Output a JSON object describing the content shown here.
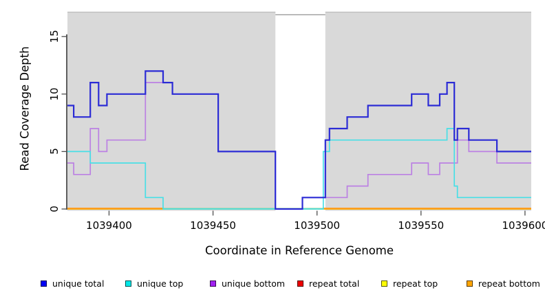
{
  "chart_data": {
    "type": "line",
    "subtype": "step",
    "title": "",
    "xlabel": "Coordinate in Reference Genome",
    "ylabel": "Read Coverage Depth",
    "xlim": [
      1039380,
      1039603
    ],
    "ylim": [
      0,
      17.2
    ],
    "x_ticks": [
      1039400,
      1039450,
      1039500,
      1039550,
      1039600
    ],
    "x_tick_labels": [
      "1039400",
      "1039450",
      "1039500",
      "1039550",
      "1039600"
    ],
    "y_ticks": [
      0,
      5,
      10,
      15
    ],
    "y_tick_labels": [
      "0",
      "5",
      "10",
      "15"
    ],
    "grid": false,
    "legend_position": "bottom",
    "plot_background": "#d9d9d9",
    "plot_background_top_edge": "#bcbcbc",
    "gap_region": {
      "x0": 1039480,
      "x1": 1039504,
      "color": "#ffffff",
      "top_line_y": 16.9,
      "top_line_color": "#9a9a9a"
    },
    "zero_line_segments": [
      {
        "x0": 1039380,
        "x1": 1039426,
        "color": "#ff9b1a",
        "width": 2.4
      },
      {
        "x0": 1039426,
        "x1": 1039503,
        "color": "#8fcf8f",
        "width": 1.7
      },
      {
        "x0": 1039503,
        "x1": 1039603,
        "color": "#ff9b1a",
        "width": 2.4
      }
    ],
    "series": [
      {
        "name": "unique total",
        "color": "#2b2bd5",
        "width": 2.2,
        "end": 1039603,
        "steps": [
          [
            1039380,
            9
          ],
          [
            1039383,
            8
          ],
          [
            1039391,
            11
          ],
          [
            1039395,
            9
          ],
          [
            1039399,
            10
          ],
          [
            1039417.5,
            12
          ],
          [
            1039426,
            11
          ],
          [
            1039430.5,
            10
          ],
          [
            1039452.5,
            5
          ],
          [
            1039480,
            0
          ],
          [
            1039493,
            1
          ],
          [
            1039504,
            6
          ],
          [
            1039506,
            7
          ],
          [
            1039514.5,
            8
          ],
          [
            1039524.5,
            9
          ],
          [
            1039545.5,
            10
          ],
          [
            1039553.5,
            9
          ],
          [
            1039559,
            10
          ],
          [
            1039562.5,
            11
          ],
          [
            1039566,
            6
          ],
          [
            1039567.5,
            7
          ],
          [
            1039573,
            6
          ],
          [
            1039586.5,
            5
          ]
        ]
      },
      {
        "name": "unique top",
        "color": "#48dfe6",
        "width": 1.7,
        "end": 1039603,
        "steps": [
          [
            1039380,
            5
          ],
          [
            1039391,
            4
          ],
          [
            1039417.5,
            1
          ],
          [
            1039426,
            0
          ],
          [
            1039503,
            5
          ],
          [
            1039506,
            6
          ],
          [
            1039562.5,
            7
          ],
          [
            1039566,
            2
          ],
          [
            1039567.5,
            1
          ]
        ]
      },
      {
        "name": "unique bottom",
        "color": "#bb80e3",
        "width": 1.7,
        "end": 1039603,
        "steps": [
          [
            1039380,
            4
          ],
          [
            1039383,
            3
          ],
          [
            1039391,
            7
          ],
          [
            1039395,
            5
          ],
          [
            1039399,
            6
          ],
          [
            1039417.5,
            11
          ],
          [
            1039430.5,
            10
          ],
          [
            1039452.5,
            5
          ],
          [
            1039480,
            0
          ],
          [
            1039493,
            1
          ],
          [
            1039514.5,
            2
          ],
          [
            1039524.5,
            3
          ],
          [
            1039545.5,
            4
          ],
          [
            1039553.5,
            3
          ],
          [
            1039559,
            4
          ],
          [
            1039567.5,
            6
          ],
          [
            1039573,
            5
          ],
          [
            1039586.5,
            4
          ]
        ]
      },
      {
        "name": "repeat total",
        "color": "#e60000",
        "width": 1.7,
        "end": 1039603,
        "steps": [
          [
            1039380,
            0
          ]
        ]
      },
      {
        "name": "repeat top",
        "color": "#f0f000",
        "width": 1.7,
        "end": 1039603,
        "steps": [
          [
            1039380,
            0
          ]
        ]
      },
      {
        "name": "repeat bottom",
        "color": "#ff9b1a",
        "width": 2.2,
        "end": 1039603,
        "steps": [
          [
            1039380,
            0
          ]
        ]
      }
    ],
    "legend": [
      {
        "label": "unique total",
        "color": "#0000f5"
      },
      {
        "label": "unique top",
        "color": "#00e8e8"
      },
      {
        "label": "unique bottom",
        "color": "#a020f0"
      },
      {
        "label": "repeat total",
        "color": "#ee0000"
      },
      {
        "label": "repeat top",
        "color": "#ffff00"
      },
      {
        "label": "repeat bottom",
        "color": "#ffa500"
      }
    ],
    "axis_color": "#1a1a1a",
    "tick_color": "#4d4d4d"
  }
}
